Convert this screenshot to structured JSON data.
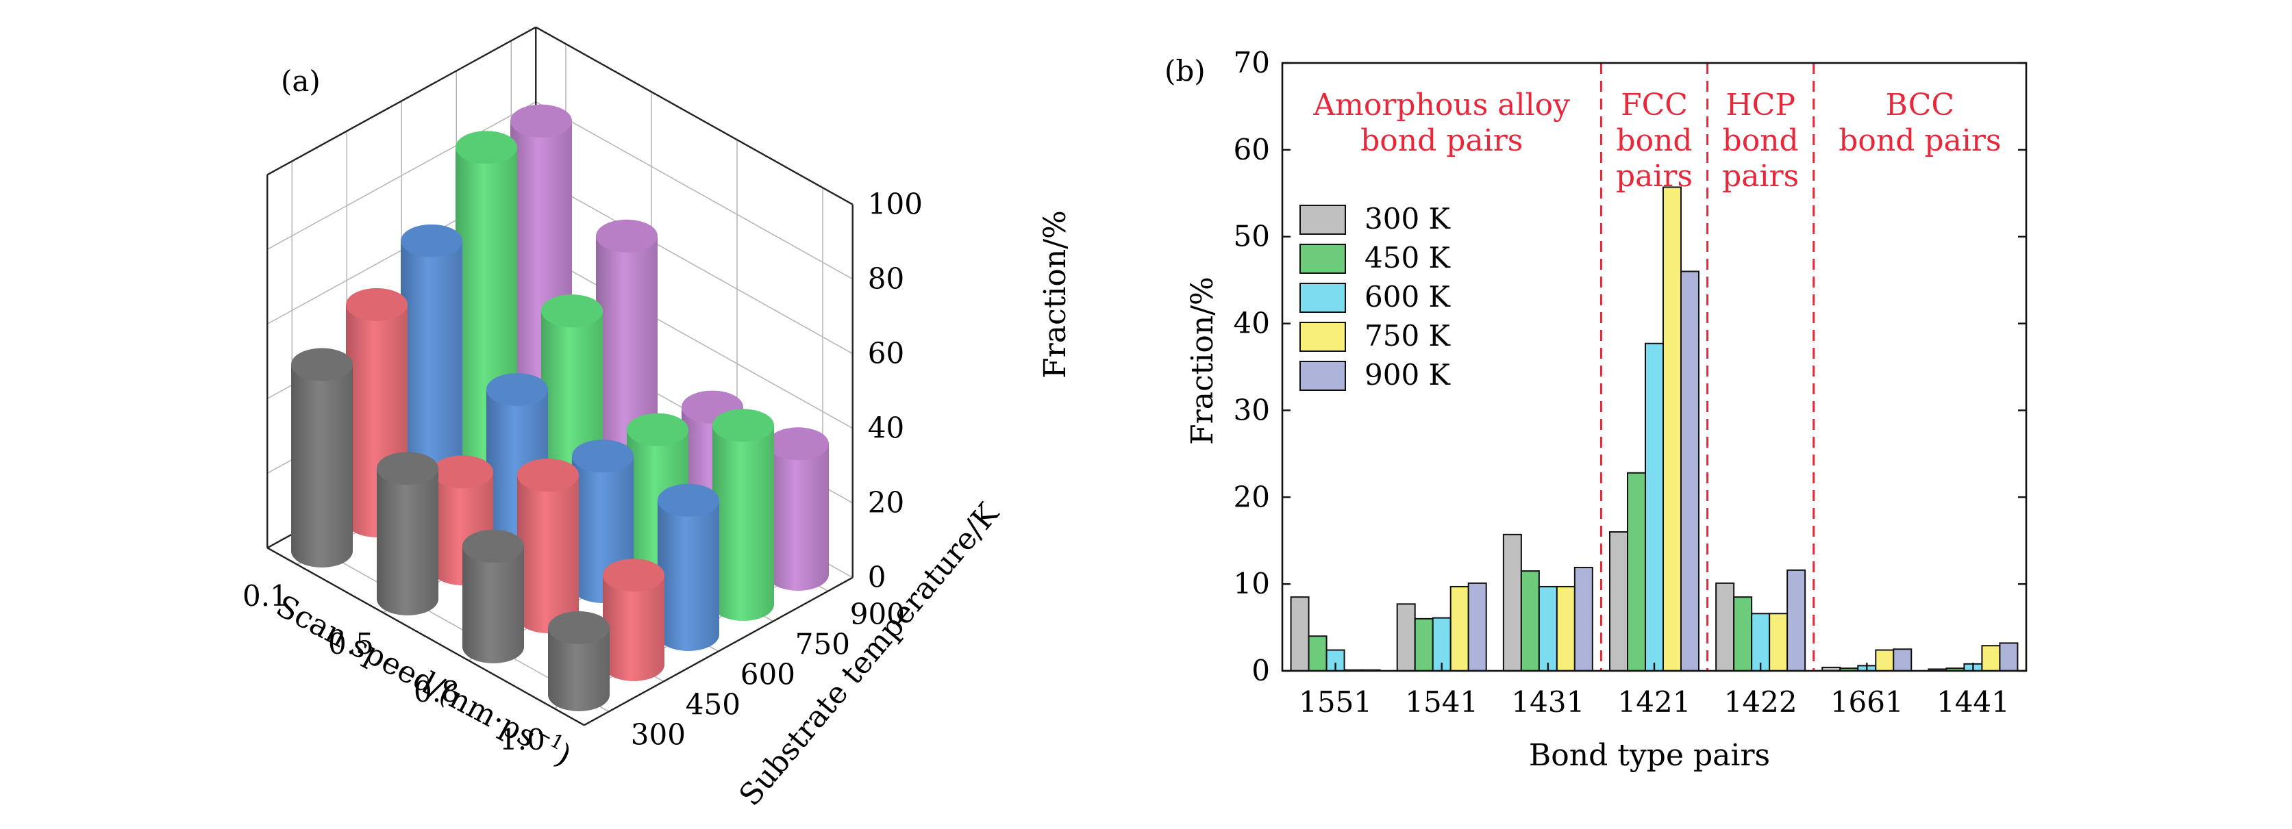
{
  "chart_data": [
    {
      "panel_label": "(a)",
      "type": "bar3d-cylinder",
      "x_axis": {
        "label": "Scan speed/(nm·ps",
        "label_sup": "−1",
        "label_tail": ")",
        "ticks": [
          "0.1",
          "0.5",
          "0.8",
          "1.0"
        ]
      },
      "y_axis": {
        "label": "Substrate temperature/K",
        "ticks": [
          "300",
          "450",
          "600",
          "750",
          "900"
        ]
      },
      "z_axis": {
        "label": "Fraction/%",
        "ticks": [
          "0",
          "20",
          "40",
          "60",
          "80",
          "100"
        ],
        "zlim": [
          0,
          100
        ]
      },
      "series": [
        {
          "name": "300 K",
          "color": "#7a7a7a",
          "values": [
            50,
            35,
            27,
            18
          ]
        },
        {
          "name": "450 K",
          "color": "#f2707a",
          "values": [
            58,
            26,
            38,
            24
          ]
        },
        {
          "name": "600 K",
          "color": "#5b93dc",
          "values": [
            67,
            40,
            35,
            36
          ]
        },
        {
          "name": "750 K",
          "color": "#5fe07d",
          "values": [
            84,
            53,
            34,
            48
          ]
        },
        {
          "name": "900 K",
          "color": "#c88ad8",
          "values": [
            83,
            65,
            32,
            35
          ]
        }
      ]
    },
    {
      "panel_label": "(b)",
      "type": "bar",
      "xlabel": "Bond type pairs",
      "ylabel": "Fraction/%",
      "ylim": [
        0,
        70
      ],
      "yticks": [
        "0",
        "10",
        "20",
        "30",
        "40",
        "50",
        "60",
        "70"
      ],
      "categories": [
        "1551",
        "1541",
        "1431",
        "1421",
        "1422",
        "1661",
        "1441"
      ],
      "series": [
        {
          "name": "300 K",
          "color": "#c0c0c0",
          "values": [
            8.5,
            7.7,
            15.7,
            16.0,
            10.1,
            0.4,
            0.2
          ]
        },
        {
          "name": "450 K",
          "color": "#6dcc7c",
          "values": [
            4.0,
            6.0,
            11.5,
            22.8,
            8.5,
            0.3,
            0.3
          ]
        },
        {
          "name": "600 K",
          "color": "#7cdcf0",
          "values": [
            2.4,
            6.1,
            9.7,
            37.7,
            6.6,
            0.6,
            0.8
          ]
        },
        {
          "name": "750 K",
          "color": "#f7ef7a",
          "values": [
            0.1,
            9.7,
            9.7,
            55.7,
            6.6,
            2.4,
            2.9
          ]
        },
        {
          "name": "900 K",
          "color": "#aeb4d9",
          "values": [
            0.1,
            10.1,
            11.9,
            46.0,
            11.6,
            2.5,
            3.2
          ]
        }
      ],
      "regions": [
        {
          "lines": [
            "Amorphous alloy",
            "bond pairs"
          ],
          "categories": [
            "1551",
            "1541",
            "1431"
          ]
        },
        {
          "lines": [
            "FCC",
            "bond",
            "pairs"
          ],
          "categories": [
            "1421"
          ]
        },
        {
          "lines": [
            "HCP",
            "bond",
            "pairs"
          ],
          "categories": [
            "1422"
          ]
        },
        {
          "lines": [
            "BCC",
            "bond pairs"
          ],
          "categories": [
            "1661",
            "1441"
          ]
        }
      ],
      "region_color": "#e8283a",
      "legend_position": "upper-left"
    }
  ]
}
